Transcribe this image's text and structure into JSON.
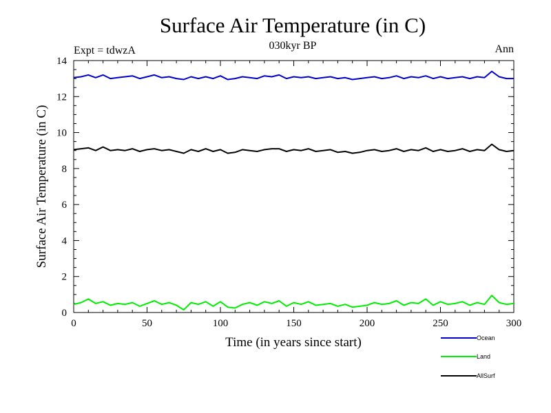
{
  "chart_data": {
    "type": "line",
    "title": "Surface Air Temperature (in C)",
    "subtitle": "030kyr BP",
    "left_note": "Expt = tdwzA",
    "right_note": "Ann",
    "xlabel": "Time (in years since start)",
    "ylabel": "Surface Air Temperature (in C)",
    "xlim": [
      0,
      300
    ],
    "ylim": [
      0,
      14
    ],
    "x_ticks": [
      0,
      50,
      100,
      150,
      200,
      250,
      300
    ],
    "y_ticks": [
      0,
      2,
      4,
      6,
      8,
      10,
      12,
      14
    ],
    "grid": false,
    "legend_position": "bottom-right, below plot",
    "x": [
      0,
      5,
      10,
      15,
      20,
      25,
      30,
      35,
      40,
      45,
      50,
      55,
      60,
      65,
      70,
      75,
      80,
      85,
      90,
      95,
      100,
      105,
      110,
      115,
      120,
      125,
      130,
      135,
      140,
      145,
      150,
      155,
      160,
      165,
      170,
      175,
      180,
      185,
      190,
      195,
      200,
      205,
      210,
      215,
      220,
      225,
      230,
      235,
      240,
      245,
      250,
      255,
      260,
      265,
      270,
      275,
      280,
      285,
      290,
      295,
      300
    ],
    "series": [
      {
        "name": "Ocean",
        "color": "#0000cc",
        "values": [
          13.05,
          13.1,
          13.2,
          13.05,
          13.2,
          13.0,
          13.05,
          13.1,
          13.15,
          13.0,
          13.1,
          13.2,
          13.05,
          13.1,
          13.0,
          12.95,
          13.1,
          13.0,
          13.1,
          13.0,
          13.15,
          12.95,
          13.0,
          13.1,
          13.05,
          13.0,
          13.15,
          13.1,
          13.2,
          13.0,
          13.1,
          13.05,
          13.1,
          13.0,
          13.05,
          13.1,
          13.0,
          13.05,
          12.95,
          13.0,
          13.05,
          13.1,
          13.0,
          13.05,
          13.15,
          13.0,
          13.1,
          13.05,
          13.15,
          13.0,
          13.1,
          13.0,
          13.05,
          13.1,
          13.0,
          13.1,
          13.05,
          13.4,
          13.1,
          13.0,
          13.0
        ]
      },
      {
        "name": "Land",
        "color": "#00ee00",
        "values": [
          0.45,
          0.55,
          0.75,
          0.5,
          0.6,
          0.4,
          0.5,
          0.45,
          0.55,
          0.35,
          0.5,
          0.65,
          0.45,
          0.55,
          0.4,
          0.15,
          0.55,
          0.45,
          0.6,
          0.35,
          0.6,
          0.3,
          0.25,
          0.45,
          0.55,
          0.4,
          0.6,
          0.5,
          0.65,
          0.35,
          0.55,
          0.45,
          0.6,
          0.4,
          0.45,
          0.5,
          0.35,
          0.45,
          0.3,
          0.35,
          0.4,
          0.55,
          0.45,
          0.5,
          0.65,
          0.4,
          0.55,
          0.5,
          0.75,
          0.4,
          0.6,
          0.45,
          0.5,
          0.6,
          0.4,
          0.55,
          0.45,
          0.95,
          0.55,
          0.45,
          0.5
        ]
      },
      {
        "name": "AllSurf",
        "color": "#000000",
        "values": [
          9.05,
          9.1,
          9.15,
          9.0,
          9.2,
          9.0,
          9.05,
          9.0,
          9.1,
          8.95,
          9.05,
          9.1,
          9.0,
          9.05,
          8.95,
          8.85,
          9.05,
          8.95,
          9.1,
          8.95,
          9.05,
          8.85,
          8.9,
          9.05,
          9.0,
          8.95,
          9.05,
          9.1,
          9.1,
          8.95,
          9.05,
          9.0,
          9.1,
          8.95,
          9.0,
          9.05,
          8.9,
          8.95,
          8.85,
          8.9,
          9.0,
          9.05,
          8.95,
          9.0,
          9.1,
          8.95,
          9.05,
          9.0,
          9.15,
          8.95,
          9.05,
          8.95,
          9.0,
          9.1,
          8.95,
          9.05,
          9.0,
          9.35,
          9.05,
          8.95,
          9.0
        ]
      }
    ]
  }
}
